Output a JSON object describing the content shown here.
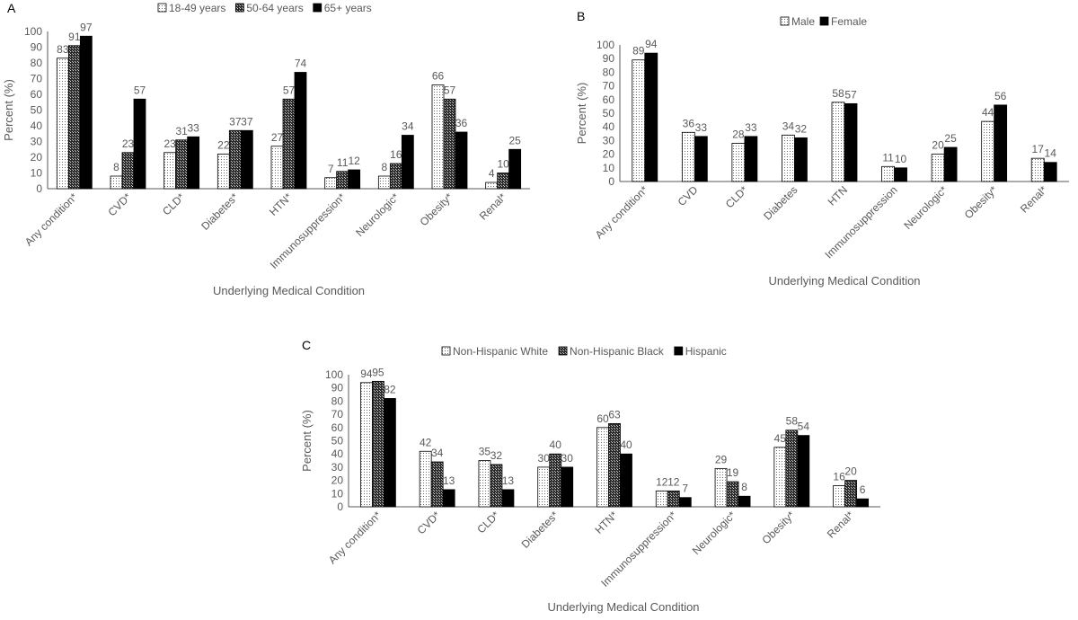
{
  "colors": {
    "axis": "#595959",
    "bar_edge": "#000000",
    "text": "#404040"
  },
  "chart_data": [
    {
      "panel_label": "A",
      "type": "bar",
      "ylabel": "Percent (%)",
      "xlabel": "Underlying Medical Condition",
      "ylim": [
        0,
        100
      ],
      "yticks": [
        "0",
        "10",
        "20",
        "30",
        "40",
        "50",
        "60",
        "70",
        "80",
        "90",
        "100"
      ],
      "legend_position": "top",
      "categories": [
        "Any condition*",
        "CVD*",
        "CLD*",
        "Diabetes*",
        "HTN*",
        "Immunosuppression*",
        "Neurologic*",
        "Obesity*",
        "Renal*"
      ],
      "series": [
        {
          "name": "18-49 years",
          "pattern": "dots",
          "values": [
            83,
            8,
            23,
            22,
            27,
            7,
            8,
            66,
            4
          ]
        },
        {
          "name": "50-64 years",
          "pattern": "checker",
          "values": [
            91,
            23,
            31,
            37,
            57,
            11,
            16,
            57,
            10
          ]
        },
        {
          "name": "65+ years",
          "pattern": "solid",
          "values": [
            97,
            57,
            33,
            37,
            74,
            12,
            34,
            36,
            25
          ]
        }
      ]
    },
    {
      "panel_label": "B",
      "type": "bar",
      "ylabel": "Percent (%)",
      "xlabel": "Underlying Medical Condition",
      "ylim": [
        0,
        100
      ],
      "yticks": [
        "0",
        "10",
        "20",
        "30",
        "40",
        "50",
        "60",
        "70",
        "80",
        "90",
        "100"
      ],
      "legend_position": "top",
      "categories": [
        "Any condition*",
        "CVD",
        "CLD*",
        "Diabetes",
        "HTN",
        "Immunosuppression",
        "Neurologic*",
        "Obesity*",
        "Renal*"
      ],
      "series": [
        {
          "name": "Male",
          "pattern": "dots",
          "values": [
            89,
            36,
            28,
            34,
            58,
            11,
            20,
            44,
            17
          ]
        },
        {
          "name": "Female",
          "pattern": "solid",
          "values": [
            94,
            33,
            33,
            32,
            57,
            10,
            25,
            56,
            14
          ]
        }
      ]
    },
    {
      "panel_label": "C",
      "type": "bar",
      "ylabel": "Percent (%)",
      "xlabel": "Underlying Medical Condition",
      "ylim": [
        0,
        100
      ],
      "yticks": [
        "0",
        "10",
        "20",
        "30",
        "40",
        "50",
        "60",
        "70",
        "80",
        "90",
        "100"
      ],
      "legend_position": "top",
      "categories": [
        "Any condition*",
        "CVD*",
        "CLD*",
        "Diabetes*",
        "HTN*",
        "Immunosuppression*",
        "Neurologic*",
        "Obesity*",
        "Renal*"
      ],
      "series": [
        {
          "name": "Non-Hispanic White",
          "pattern": "dots",
          "values": [
            94,
            42,
            35,
            30,
            60,
            12,
            29,
            45,
            16
          ]
        },
        {
          "name": "Non-Hispanic Black",
          "pattern": "checker",
          "values": [
            95,
            34,
            32,
            40,
            63,
            12,
            19,
            58,
            20
          ]
        },
        {
          "name": "Hispanic",
          "pattern": "solid",
          "values": [
            82,
            13,
            13,
            30,
            40,
            7,
            8,
            54,
            6
          ]
        }
      ]
    }
  ]
}
